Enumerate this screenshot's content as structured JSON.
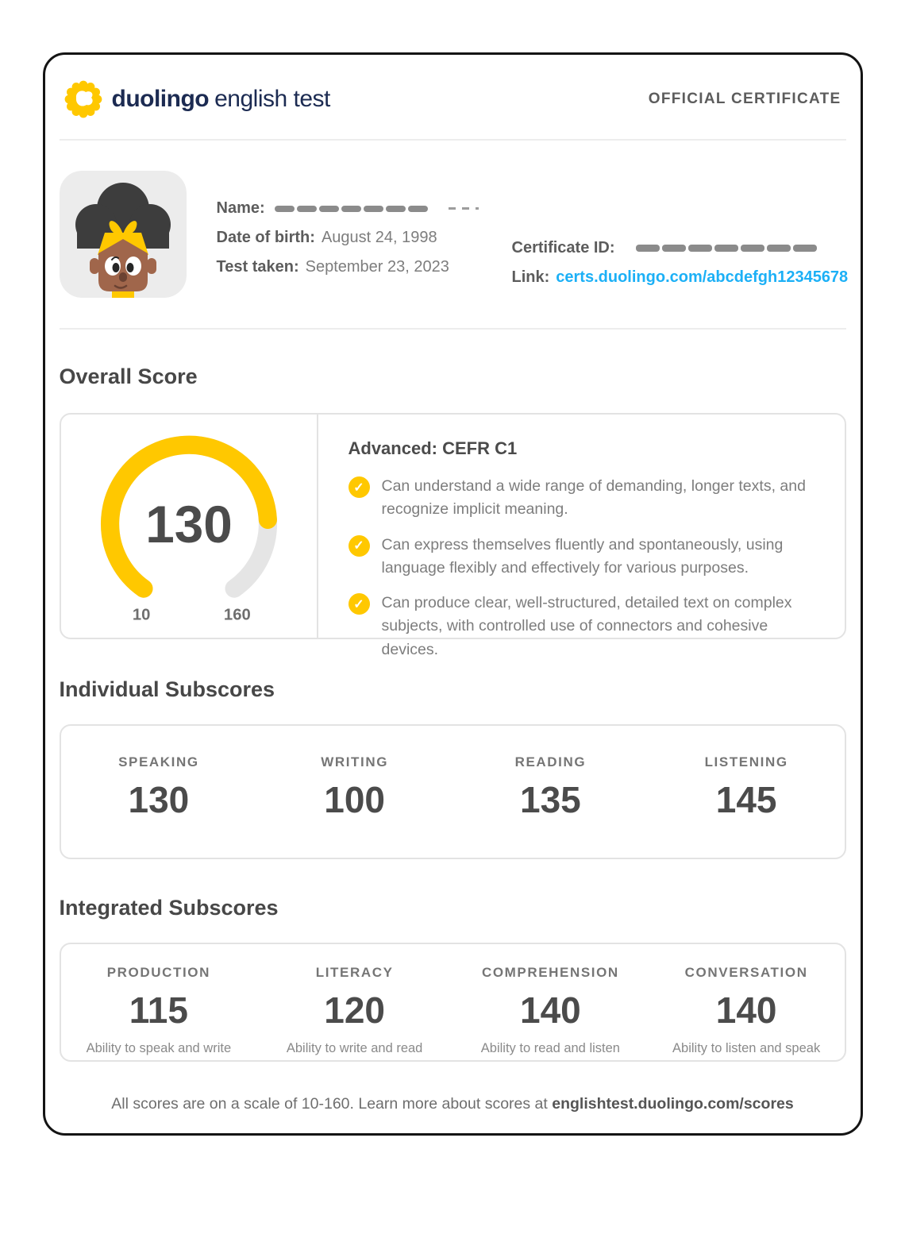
{
  "header": {
    "wordmark_bold": "duolingo",
    "wordmark_regular": "english test",
    "official_label": "OFFICIAL CERTIFICATE"
  },
  "profile": {
    "name_label": "Name:",
    "dob_label": "Date of birth:",
    "dob_value": "August 24, 1998",
    "test_taken_label": "Test taken:",
    "test_taken_value": "September 23, 2023",
    "certificate_id_label": "Certificate ID:",
    "link_label": "Link:",
    "link_value": "certs.duolingo.com/abcdefgh12345678"
  },
  "overall": {
    "heading": "Overall Score",
    "level_title": "Advanced: CEFR C1",
    "bullets": [
      "Can understand a wide range of demanding, longer texts, and recognize implicit meaning.",
      "Can express themselves fluently and spontaneously, using language flexibly and effectively for various purposes.",
      "Can produce clear, well-structured, detailed text on complex subjects, with controlled use of connectors and cohesive devices."
    ]
  },
  "chart_data": {
    "type": "gauge",
    "title": "Overall Score",
    "value": 130,
    "min": 10,
    "max": 160,
    "min_label": "10",
    "max_label": "160",
    "filled_color": "#ffc800",
    "track_color": "#e5e5e5",
    "start_angle_deg": 235,
    "end_angle_deg": -55
  },
  "individual": {
    "heading": "Individual Subscores",
    "items": [
      {
        "label": "SPEAKING",
        "value": 130
      },
      {
        "label": "WRITING",
        "value": 100
      },
      {
        "label": "READING",
        "value": 135
      },
      {
        "label": "LISTENING",
        "value": 145
      }
    ]
  },
  "integrated": {
    "heading": "Integrated Subscores",
    "items": [
      {
        "label": "PRODUCTION",
        "value": 115,
        "description": "Ability to speak and write"
      },
      {
        "label": "LITERACY",
        "value": 120,
        "description": "Ability to write and read"
      },
      {
        "label": "COMPREHENSION",
        "value": 140,
        "description": "Ability to read and listen"
      },
      {
        "label": "CONVERSATION",
        "value": 140,
        "description": "Ability to listen and speak"
      }
    ]
  },
  "footer": {
    "text_regular": "All scores are on a scale of 10-160. Learn more about scores at ",
    "text_bold": "englishtest.duolingo.com/scores"
  },
  "colors": {
    "accent_yellow": "#ffc800",
    "brand_navy": "#1c2b52",
    "link_blue": "#1cb0f6",
    "score_dark": "#4b4b4b"
  }
}
